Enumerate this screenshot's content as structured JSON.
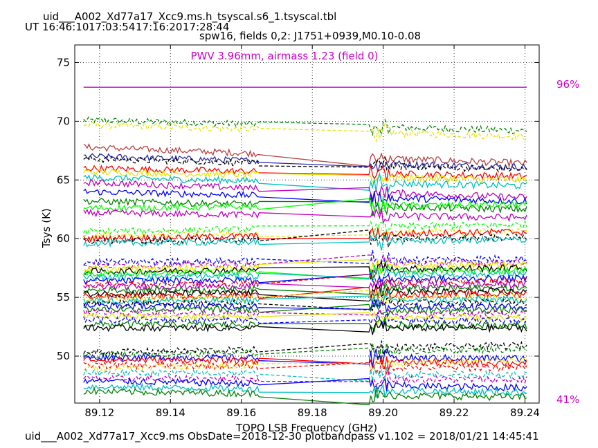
{
  "header": {
    "filename": "uid___A002_Xd77a17_Xcc9.ms.h_tsyscal.s6_1.tsyscal.tbl",
    "ut_label": "UT",
    "times": [
      "16:46:10",
      "17:03:54",
      "17:16:20",
      "17:28:44"
    ],
    "subtitle": "spw16,  fields 0,2: J1751+0939,M0.10-0.08"
  },
  "annotation": {
    "pwv": "PWV 3.96mm, airmass 1.23 (field 0)",
    "top_pct": "96%",
    "bottom_pct": "41%"
  },
  "footer": "uid___A002_Xd77a17_Xcc9.ms  ObsDate=2018-12-30   plotbandpass v1.102 = 2018/01/21 14:45:41",
  "colors": {
    "annotation": "#cc00cc",
    "series_palette": [
      "#0000ff",
      "#008000",
      "#ff0000",
      "#00bfbf",
      "#bf00bf",
      "#e5e500",
      "#000000",
      "#00ff00",
      "#b84040",
      "#2c2ca0"
    ]
  },
  "chart_data": {
    "type": "line",
    "xlabel": "TOPO LSB Frequency (GHz)",
    "ylabel": "Tsys (K)",
    "xlim": [
      89.113,
      89.244
    ],
    "ylim": [
      46,
      76.5
    ],
    "xticks": [
      "89.12",
      "89.14",
      "89.16",
      "89.18",
      "89.20",
      "89.22",
      "89.24"
    ],
    "yticks": [
      "50",
      "55",
      "60",
      "65",
      "70",
      "75"
    ],
    "grid": true,
    "gap": [
      89.165,
      89.196
    ],
    "atm_transmission": {
      "level": 72.9,
      "color": "#cc00cc"
    },
    "series": [
      {
        "color": "#008000",
        "dashed": true,
        "left": 70.1,
        "right": 69.2
      },
      {
        "color": "#e5e500",
        "dashed": true,
        "left": 69.7,
        "right": 68.7
      },
      {
        "color": "#b84040",
        "dashed": false,
        "left": 67.8,
        "right": 66.4
      },
      {
        "color": "#2c2ca0",
        "dashed": false,
        "left": 67.0,
        "right": 66.1
      },
      {
        "color": "#000000",
        "dashed": true,
        "left": 66.8,
        "right": 65.9
      },
      {
        "color": "#ff0000",
        "dashed": false,
        "left": 66.0,
        "right": 65.3
      },
      {
        "color": "#e5e500",
        "dashed": false,
        "left": 65.7,
        "right": 65.0
      },
      {
        "color": "#00bfbf",
        "dashed": false,
        "left": 65.2,
        "right": 64.5
      },
      {
        "color": "#bf00bf",
        "dashed": false,
        "left": 64.8,
        "right": 63.5
      },
      {
        "color": "#0000ff",
        "dashed": false,
        "left": 64.0,
        "right": 63.2
      },
      {
        "color": "#008000",
        "dashed": false,
        "left": 63.2,
        "right": 62.5
      },
      {
        "color": "#00ff00",
        "dashed": false,
        "left": 62.6,
        "right": 62.9
      },
      {
        "color": "#bf00bf",
        "dashed": false,
        "left": 62.2,
        "right": 61.8
      },
      {
        "color": "#00ff00",
        "dashed": true,
        "left": 60.6,
        "right": 61.2
      },
      {
        "color": "#e5e500",
        "dashed": true,
        "left": 60.3,
        "right": 60.6
      },
      {
        "color": "#ff0000",
        "dashed": false,
        "left": 60.0,
        "right": 60.6
      },
      {
        "color": "#000000",
        "dashed": true,
        "left": 59.8,
        "right": 60.1
      },
      {
        "color": "#00bfbf",
        "dashed": false,
        "left": 59.6,
        "right": 59.9
      },
      {
        "color": "#0000ff",
        "dashed": true,
        "left": 58.0,
        "right": 58.3
      },
      {
        "color": "#bf00bf",
        "dashed": true,
        "left": 57.7,
        "right": 58.0
      },
      {
        "color": "#e5e500",
        "dashed": false,
        "left": 57.4,
        "right": 57.8
      },
      {
        "color": "#000000",
        "dashed": false,
        "left": 57.2,
        "right": 57.5
      },
      {
        "color": "#00ff00",
        "dashed": false,
        "left": 57.0,
        "right": 57.3
      },
      {
        "color": "#00bfbf",
        "dashed": false,
        "left": 56.7,
        "right": 57.0
      },
      {
        "color": "#0000ff",
        "dashed": false,
        "left": 56.4,
        "right": 56.6
      },
      {
        "color": "#ff0000",
        "dashed": true,
        "left": 56.1,
        "right": 56.4
      },
      {
        "color": "#bf00bf",
        "dashed": false,
        "left": 55.9,
        "right": 56.1
      },
      {
        "color": "#008000",
        "dashed": false,
        "left": 55.6,
        "right": 55.8
      },
      {
        "color": "#000000",
        "dashed": false,
        "left": 55.3,
        "right": 55.5
      },
      {
        "color": "#ff0000",
        "dashed": false,
        "left": 55.1,
        "right": 55.3
      },
      {
        "color": "#e5e500",
        "dashed": true,
        "left": 54.9,
        "right": 55.0
      },
      {
        "color": "#00bfbf",
        "dashed": false,
        "left": 54.7,
        "right": 54.8
      },
      {
        "color": "#000000",
        "dashed": true,
        "left": 54.5,
        "right": 54.6
      },
      {
        "color": "#0000ff",
        "dashed": false,
        "left": 54.3,
        "right": 54.2
      },
      {
        "color": "#008000",
        "dashed": false,
        "left": 54.0,
        "right": 53.9
      },
      {
        "color": "#bf00bf",
        "dashed": true,
        "left": 53.7,
        "right": 53.6
      },
      {
        "color": "#e5e500",
        "dashed": false,
        "left": 53.4,
        "right": 53.2
      },
      {
        "color": "#0000ff",
        "dashed": true,
        "left": 53.1,
        "right": 53.0
      },
      {
        "color": "#008000",
        "dashed": false,
        "left": 52.7,
        "right": 52.6
      },
      {
        "color": "#000000",
        "dashed": false,
        "left": 52.4,
        "right": 52.4
      },
      {
        "color": "#000000",
        "dashed": true,
        "left": 50.3,
        "right": 50.9
      },
      {
        "color": "#008000",
        "dashed": true,
        "left": 50.1,
        "right": 50.6
      },
      {
        "color": "#0000ff",
        "dashed": false,
        "left": 49.9,
        "right": 49.8
      },
      {
        "color": "#ff0000",
        "dashed": false,
        "left": 49.7,
        "right": 49.4
      },
      {
        "color": "#ff0000",
        "dashed": true,
        "left": 49.2,
        "right": 49.0
      },
      {
        "color": "#e5e500",
        "dashed": true,
        "left": 49.0,
        "right": 49.6
      },
      {
        "color": "#00bfbf",
        "dashed": true,
        "left": 48.6,
        "right": 48.4
      },
      {
        "color": "#bf00bf",
        "dashed": true,
        "left": 48.1,
        "right": 48.0
      },
      {
        "color": "#0000ff",
        "dashed": false,
        "left": 47.9,
        "right": 47.3
      },
      {
        "color": "#00bfbf",
        "dashed": false,
        "left": 47.4,
        "right": 46.9
      },
      {
        "color": "#008000",
        "dashed": false,
        "left": 47.0,
        "right": 46.5
      }
    ]
  }
}
